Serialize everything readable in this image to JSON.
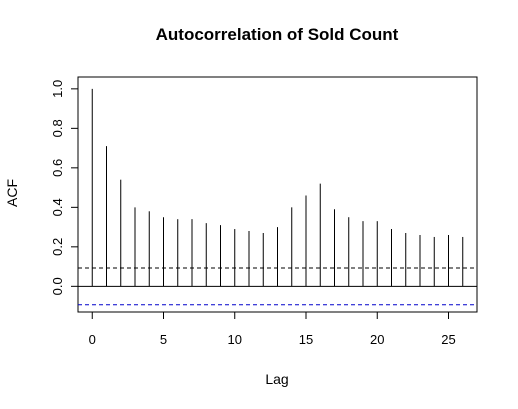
{
  "chart_data": {
    "type": "bar",
    "title": "Autocorrelation of Sold Count",
    "xlabel": "Lag",
    "ylabel": "ACF",
    "xlim": [
      -1,
      27
    ],
    "ylim": [
      -0.13,
      1.06
    ],
    "x_ticks": [
      0,
      5,
      10,
      15,
      20,
      25
    ],
    "y_ticks": [
      0.0,
      0.2,
      0.4,
      0.6,
      0.8,
      1.0
    ],
    "x_tick_labels": [
      "0",
      "5",
      "10",
      "15",
      "20",
      "25"
    ],
    "y_tick_labels": [
      "0.0",
      "0.2",
      "0.4",
      "0.6",
      "0.8",
      "1.0"
    ],
    "lags": [
      0,
      1,
      2,
      3,
      4,
      5,
      6,
      7,
      8,
      9,
      10,
      11,
      12,
      13,
      14,
      15,
      16,
      17,
      18,
      19,
      20,
      21,
      22,
      23,
      24,
      25,
      26
    ],
    "acf": [
      1.0,
      0.71,
      0.54,
      0.4,
      0.38,
      0.35,
      0.34,
      0.34,
      0.32,
      0.31,
      0.29,
      0.28,
      0.27,
      0.3,
      0.4,
      0.46,
      0.52,
      0.39,
      0.35,
      0.33,
      0.33,
      0.29,
      0.27,
      0.26,
      0.25,
      0.26,
      0.25
    ],
    "confidence_bound": 0.093,
    "zero_line": 0,
    "grid": false,
    "colors": {
      "bar": "#000000",
      "zero_line": "#000000",
      "ci_upper": "#000000",
      "ci_lower": "#0000cc"
    }
  }
}
